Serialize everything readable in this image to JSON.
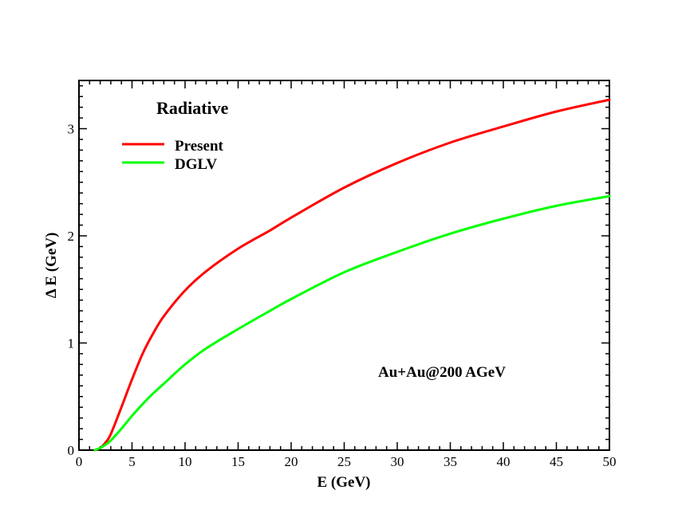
{
  "chart_data": {
    "type": "line",
    "title": "",
    "xlabel": "E (GeV)",
    "ylabel": "Δ  E (GeV)",
    "xlim": [
      0,
      50
    ],
    "ylim": [
      0,
      3.45
    ],
    "x_ticks": [
      0,
      5,
      10,
      15,
      20,
      25,
      30,
      35,
      40,
      45,
      50
    ],
    "y_ticks": [
      0,
      1,
      2,
      3
    ],
    "grid": false,
    "legend": {
      "title": "Radiative",
      "position": "top-left",
      "entries": [
        "Present",
        "DGLV"
      ]
    },
    "annotation": "Au+Au@200 AGeV",
    "series": [
      {
        "name": "Present",
        "color": "#ff0000",
        "x": [
          1.5,
          2,
          2.5,
          3,
          4,
          5,
          6,
          7,
          8,
          10,
          12,
          15,
          18,
          20,
          25,
          30,
          35,
          40,
          45,
          50
        ],
        "y": [
          0.0,
          0.02,
          0.07,
          0.15,
          0.4,
          0.66,
          0.9,
          1.09,
          1.25,
          1.49,
          1.67,
          1.88,
          2.05,
          2.17,
          2.45,
          2.68,
          2.87,
          3.02,
          3.16,
          3.27
        ]
      },
      {
        "name": "DGLV",
        "color": "#00ff00",
        "x": [
          1.5,
          2,
          2.5,
          3,
          4,
          5,
          6,
          7,
          8,
          10,
          12,
          15,
          18,
          20,
          25,
          30,
          35,
          40,
          45,
          50
        ],
        "y": [
          0.0,
          0.02,
          0.05,
          0.09,
          0.2,
          0.32,
          0.43,
          0.53,
          0.62,
          0.8,
          0.95,
          1.13,
          1.3,
          1.41,
          1.66,
          1.85,
          2.02,
          2.16,
          2.28,
          2.37
        ]
      }
    ]
  }
}
